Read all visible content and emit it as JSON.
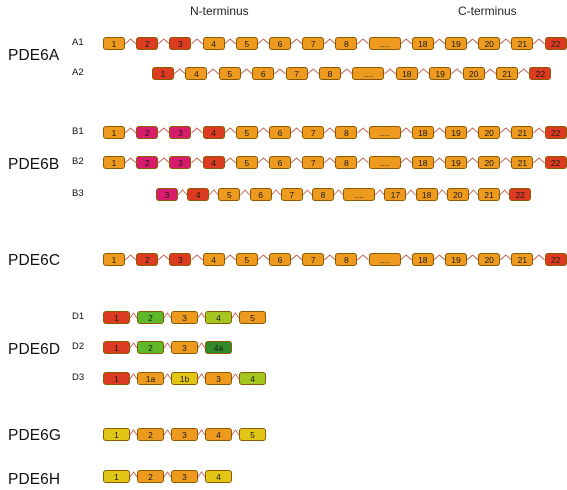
{
  "header": {
    "n_terminus": "N-terminus",
    "c_terminus": "C-terminus"
  },
  "colors": {
    "orange": "#ee9a1f",
    "red": "#dc3b22",
    "magenta": "#d81b6a",
    "green": "#5db82a",
    "dark_green": "#2f8a2a",
    "lime": "#a6c51e",
    "yellow": "#e2c616",
    "border": "#8a5a00",
    "connector": "#c75b4a"
  },
  "genes": [
    {
      "name": "PDE6A",
      "transcripts": [
        {
          "id": "A1",
          "exons": [
            {
              "label": "1",
              "color": "orange"
            },
            {
              "label": "2",
              "color": "red"
            },
            {
              "label": "3",
              "color": "red"
            },
            {
              "label": "4",
              "color": "orange"
            },
            {
              "label": "5",
              "color": "orange"
            },
            {
              "label": "6",
              "color": "orange"
            },
            {
              "label": "7",
              "color": "orange"
            },
            {
              "label": "8",
              "color": "orange"
            },
            {
              "label": "....",
              "color": "orange"
            },
            {
              "label": "18",
              "color": "orange"
            },
            {
              "label": "19",
              "color": "orange"
            },
            {
              "label": "20",
              "color": "orange"
            },
            {
              "label": "21",
              "color": "orange"
            },
            {
              "label": "22",
              "color": "red"
            }
          ]
        },
        {
          "id": "A2",
          "exons": [
            {
              "label": "1",
              "color": "red"
            },
            {
              "label": "4",
              "color": "orange"
            },
            {
              "label": "5",
              "color": "orange"
            },
            {
              "label": "6",
              "color": "orange"
            },
            {
              "label": "7",
              "color": "orange"
            },
            {
              "label": "8",
              "color": "orange"
            },
            {
              "label": "....",
              "color": "orange"
            },
            {
              "label": "18",
              "color": "orange"
            },
            {
              "label": "19",
              "color": "orange"
            },
            {
              "label": "20",
              "color": "orange"
            },
            {
              "label": "21",
              "color": "orange"
            },
            {
              "label": "22",
              "color": "red"
            }
          ]
        }
      ]
    },
    {
      "name": "PDE6B",
      "transcripts": [
        {
          "id": "B1",
          "exons": [
            {
              "label": "1",
              "color": "orange"
            },
            {
              "label": "2",
              "color": "magenta"
            },
            {
              "label": "3",
              "color": "magenta"
            },
            {
              "label": "4",
              "color": "red"
            },
            {
              "label": "5",
              "color": "orange"
            },
            {
              "label": "6",
              "color": "orange"
            },
            {
              "label": "7",
              "color": "orange"
            },
            {
              "label": "8",
              "color": "orange"
            },
            {
              "label": "....",
              "color": "orange"
            },
            {
              "label": "18",
              "color": "orange"
            },
            {
              "label": "19",
              "color": "orange"
            },
            {
              "label": "20",
              "color": "orange"
            },
            {
              "label": "21",
              "color": "orange"
            },
            {
              "label": "22",
              "color": "red"
            }
          ]
        },
        {
          "id": "B2",
          "exons": [
            {
              "label": "1",
              "color": "orange"
            },
            {
              "label": "2",
              "color": "magenta"
            },
            {
              "label": "3",
              "color": "magenta"
            },
            {
              "label": "4",
              "color": "red"
            },
            {
              "label": "5",
              "color": "orange"
            },
            {
              "label": "6",
              "color": "orange"
            },
            {
              "label": "7",
              "color": "orange"
            },
            {
              "label": "8",
              "color": "orange"
            },
            {
              "label": "....",
              "color": "orange"
            },
            {
              "label": "18",
              "color": "orange"
            },
            {
              "label": "19",
              "color": "orange"
            },
            {
              "label": "20",
              "color": "orange"
            },
            {
              "label": "21",
              "color": "orange"
            },
            {
              "label": "22",
              "color": "red"
            }
          ]
        },
        {
          "id": "B3",
          "exons": [
            {
              "label": "3",
              "color": "magenta"
            },
            {
              "label": "4",
              "color": "red"
            },
            {
              "label": "5",
              "color": "orange"
            },
            {
              "label": "6",
              "color": "orange"
            },
            {
              "label": "7",
              "color": "orange"
            },
            {
              "label": "8",
              "color": "orange"
            },
            {
              "label": "....",
              "color": "orange"
            },
            {
              "label": "17",
              "color": "orange"
            },
            {
              "label": "18",
              "color": "orange"
            },
            {
              "label": "20",
              "color": "orange"
            },
            {
              "label": "21",
              "color": "orange"
            },
            {
              "label": "22",
              "color": "red"
            }
          ]
        }
      ]
    },
    {
      "name": "PDE6C",
      "transcripts": [
        {
          "id": "",
          "exons": [
            {
              "label": "1",
              "color": "orange"
            },
            {
              "label": "2",
              "color": "red"
            },
            {
              "label": "3",
              "color": "red"
            },
            {
              "label": "4",
              "color": "orange"
            },
            {
              "label": "5",
              "color": "orange"
            },
            {
              "label": "6",
              "color": "orange"
            },
            {
              "label": "7",
              "color": "orange"
            },
            {
              "label": "8",
              "color": "orange"
            },
            {
              "label": "....",
              "color": "orange"
            },
            {
              "label": "18",
              "color": "orange"
            },
            {
              "label": "19",
              "color": "orange"
            },
            {
              "label": "20",
              "color": "orange"
            },
            {
              "label": "21",
              "color": "orange"
            },
            {
              "label": "22",
              "color": "red"
            }
          ]
        }
      ]
    },
    {
      "name": "PDE6D",
      "transcripts": [
        {
          "id": "D1",
          "exons": [
            {
              "label": "1",
              "color": "red"
            },
            {
              "label": "2",
              "color": "green"
            },
            {
              "label": "3",
              "color": "orange"
            },
            {
              "label": "4",
              "color": "lime"
            },
            {
              "label": "5",
              "color": "orange"
            }
          ]
        },
        {
          "id": "D2",
          "exons": [
            {
              "label": "1",
              "color": "red"
            },
            {
              "label": "2",
              "color": "green"
            },
            {
              "label": "3",
              "color": "orange"
            },
            {
              "label": "4a",
              "color": "dark_green"
            }
          ]
        },
        {
          "id": "D3",
          "exons": [
            {
              "label": "1",
              "color": "red"
            },
            {
              "label": "1a",
              "color": "orange"
            },
            {
              "label": "1b",
              "color": "yellow"
            },
            {
              "label": "3",
              "color": "orange"
            },
            {
              "label": "4",
              "color": "lime"
            }
          ]
        }
      ]
    },
    {
      "name": "PDE6G",
      "transcripts": [
        {
          "id": "",
          "exons": [
            {
              "label": "1",
              "color": "yellow"
            },
            {
              "label": "2",
              "color": "orange"
            },
            {
              "label": "3",
              "color": "orange"
            },
            {
              "label": "4",
              "color": "orange"
            },
            {
              "label": "5",
              "color": "yellow"
            }
          ]
        }
      ]
    },
    {
      "name": "PDE6H",
      "transcripts": [
        {
          "id": "",
          "exons": [
            {
              "label": "1",
              "color": "yellow"
            },
            {
              "label": "2",
              "color": "orange"
            },
            {
              "label": "3",
              "color": "orange"
            },
            {
              "label": "4",
              "color": "yellow"
            }
          ]
        }
      ]
    }
  ]
}
